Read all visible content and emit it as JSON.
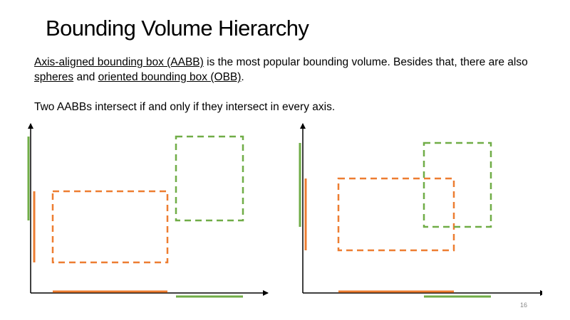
{
  "slide": {
    "title": "Bounding Volume Hierarchy",
    "paragraph1": {
      "link_aabb": "Axis-aligned bounding box (AABB)",
      "text_a": " is the most popular bounding volume. Besides that, there are also ",
      "link_spheres": "spheres",
      "text_b": " and ",
      "link_obb": "oriented bounding box (OBB)",
      "text_c": "."
    },
    "paragraph2": "Two AABBs intersect if and only if they intersect in every axis.",
    "page_number": "16"
  },
  "colors": {
    "orange": "#ed7d31",
    "green": "#70ad47",
    "axis": "#000000"
  },
  "diagrams": [
    {
      "name": "non-intersecting-aabbs",
      "boxes": [
        "orange-box",
        "green-box"
      ],
      "intersect": false
    },
    {
      "name": "intersecting-aabbs",
      "boxes": [
        "orange-box",
        "green-box"
      ],
      "intersect": true
    }
  ]
}
